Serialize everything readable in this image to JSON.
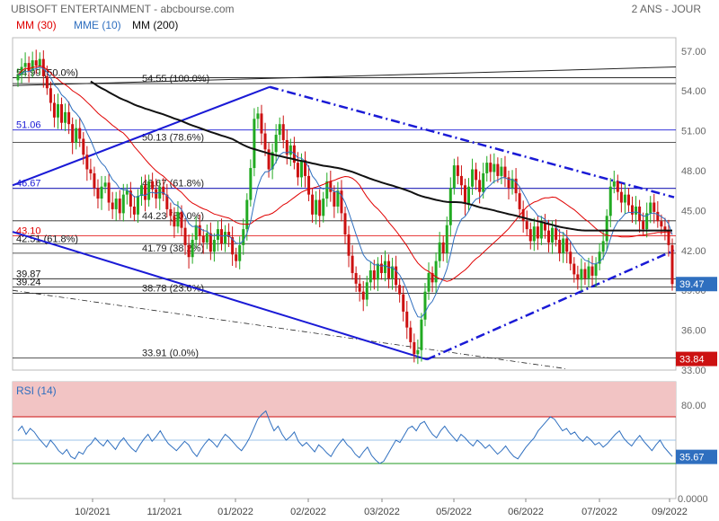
{
  "header": {
    "title": "UBISOFT ENTERTAINMENT - abcbourse.com",
    "period": "2 ANS - JOUR"
  },
  "legend": [
    {
      "label": "MM (30)",
      "color": "#e00000"
    },
    {
      "label": "MME (10)",
      "color": "#2f6fbf"
    },
    {
      "label": "MM (200)",
      "color": "#111111"
    }
  ],
  "chart_data": [
    {
      "type": "candlestick",
      "ylim": [
        33,
        58
      ],
      "yticks": [
        "57.00",
        "54.00",
        "51.00",
        "48.00",
        "45.00",
        "42.00",
        "39.00",
        "36.00",
        "33.00"
      ],
      "xticks": [
        "10/2021",
        "11/2021",
        "01/2022",
        "02/2022",
        "03/2022",
        "05/2022",
        "06/2022",
        "07/2022",
        "09/2022"
      ],
      "last_price": "39.47",
      "low_marker": "33.84",
      "fib_levels": [
        {
          "label": "54.55  (100.0%)",
          "value": 54.55
        },
        {
          "label": "50.13  (78.6%)",
          "value": 50.13
        },
        {
          "label": "46.67  (61.8%)",
          "value": 46.67
        },
        {
          "label": "44.23  (50.0%)",
          "value": 44.23
        },
        {
          "label": "41.79  (38.2%)",
          "value": 41.79
        },
        {
          "label": "38.78  (23.6%)",
          "value": 38.78
        },
        {
          "label": "33.91  (0.0%)",
          "value": 33.91
        }
      ],
      "left_levels": [
        {
          "label": "54.99  (50.0%)",
          "value": 54.99,
          "color": "#111111"
        },
        {
          "label": "51.06",
          "value": 51.06,
          "color": "#1a1ad6"
        },
        {
          "label": "46.67",
          "value": 46.67,
          "color": "#1a1ad6"
        },
        {
          "label": "43.10",
          "value": 43.1,
          "color": "#e00000"
        },
        {
          "label": "42.51  (61.8%)",
          "value": 42.51,
          "color": "#111111"
        },
        {
          "label": "39.87",
          "value": 39.87,
          "color": "#111111"
        },
        {
          "label": "39.24",
          "value": 39.24,
          "color": "#111111"
        }
      ],
      "closes": [
        55.2,
        55.8,
        56.1,
        55.5,
        56.3,
        55.9,
        56.4,
        55.1,
        54.2,
        53.1,
        52.0,
        53.0,
        51.6,
        52.4,
        51.5,
        50.1,
        51.2,
        50.4,
        49.2,
        48.1,
        47.8,
        46.7,
        45.9,
        46.8,
        47.1,
        45.6,
        45.1,
        45.9,
        44.8,
        46.2,
        46.5,
        45.3,
        44.7,
        46.1,
        46.9,
        45.8,
        47.2,
        46.6,
        45.9,
        46.8,
        46.2,
        45.1,
        44.6,
        43.8,
        44.9,
        43.7,
        42.4,
        41.5,
        42.8,
        43.9,
        43.1,
        42.6,
        43.3,
        41.9,
        42.8,
        43.6,
        42.5,
        43.4,
        43.0,
        41.7,
        41.2,
        42.4,
        43.6,
        45.8,
        48.2,
        51.9,
        52.3,
        50.8,
        49.6,
        48.1,
        49.4,
        50.7,
        51.5,
        50.3,
        49.2,
        49.9,
        48.6,
        47.5,
        48.8,
        47.6,
        46.2,
        44.7,
        45.8,
        44.6,
        45.9,
        47.2,
        46.4,
        45.3,
        46.5,
        44.8,
        43.2,
        41.6,
        40.3,
        39.5,
        38.9,
        38.3,
        39.6,
        40.5,
        39.8,
        41.0,
        40.3,
        41.2,
        39.9,
        40.8,
        39.4,
        38.7,
        37.4,
        36.2,
        35.1,
        34.2,
        34.5,
        36.8,
        38.9,
        40.3,
        39.6,
        41.2,
        42.6,
        41.8,
        43.9,
        46.7,
        48.4,
        47.6,
        46.9,
        45.5,
        46.8,
        48.1,
        47.3,
        46.4,
        47.8,
        48.6,
        47.9,
        48.5,
        47.6,
        48.3,
        47.5,
        46.7,
        47.4,
        46.3,
        45.1,
        44.2,
        43.6,
        42.7,
        43.8,
        42.9,
        44.1,
        43.5,
        42.6,
        43.7,
        42.8,
        41.8,
        42.9,
        41.9,
        41.0,
        40.2,
        39.8,
        40.6,
        39.9,
        40.8,
        40.1,
        41.0,
        41.9,
        42.7,
        44.6,
        46.8,
        47.2,
        46.4,
        45.6,
        46.2,
        45.4,
        44.7,
        45.3,
        44.2,
        43.6,
        44.8,
        45.6,
        44.9,
        44.2,
        43.8,
        43.5,
        42.4,
        39.47
      ],
      "rsi": {
        "label": "RSI (14)",
        "ylim": [
          0,
          100
        ],
        "yticks": [
          "80.00",
          "0.0000"
        ],
        "overbought": 70,
        "oversold": 30,
        "last": "35.67",
        "values": [
          58,
          62,
          55,
          60,
          57,
          52,
          48,
          44,
          50,
          46,
          41,
          38,
          42,
          36,
          34,
          40,
          38,
          44,
          47,
          52,
          48,
          45,
          50,
          46,
          42,
          48,
          52,
          47,
          43,
          40,
          46,
          51,
          55,
          49,
          53,
          58,
          52,
          47,
          44,
          41,
          45,
          49,
          46,
          40,
          36,
          42,
          47,
          51,
          48,
          44,
          50,
          55,
          52,
          48,
          44,
          41,
          46,
          52,
          60,
          68,
          72,
          75,
          66,
          58,
          62,
          55,
          50,
          53,
          57,
          49,
          45,
          48,
          44,
          40,
          46,
          43,
          39,
          36,
          42,
          47,
          51,
          46,
          43,
          38,
          35,
          40,
          44,
          37,
          33,
          30,
          32,
          38,
          44,
          50,
          48,
          54,
          60,
          62,
          58,
          64,
          66,
          60,
          55,
          52,
          58,
          62,
          57,
          53,
          49,
          55,
          52,
          48,
          45,
          50,
          47,
          43,
          46,
          42,
          38,
          41,
          45,
          40,
          36,
          34,
          39,
          44,
          48,
          52,
          58,
          62,
          66,
          70,
          68,
          63,
          58,
          60,
          55,
          57,
          52,
          49,
          53,
          50,
          46,
          48,
          44,
          47,
          51,
          55,
          58,
          52,
          48,
          45,
          50,
          54,
          49,
          45,
          41,
          46,
          50,
          44,
          40,
          36
        ]
      }
    }
  ]
}
